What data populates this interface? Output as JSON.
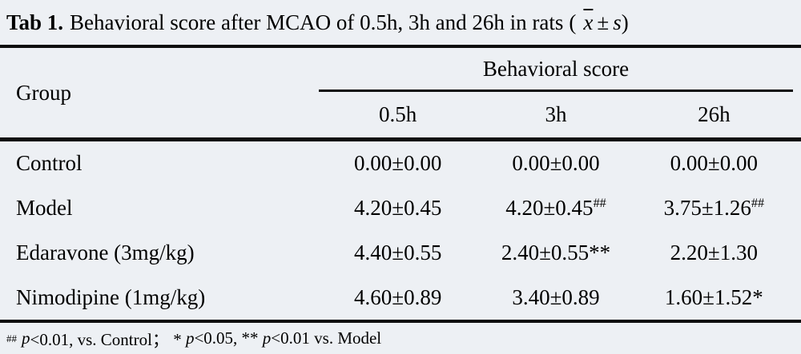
{
  "title": {
    "label": "Tab 1.",
    "text": "Behavioral score after MCAO of 0.5h, 3h and 26h in rats",
    "open_paren": "(",
    "mean_symbol": "x",
    "plus_minus": "±",
    "sd_symbol": "s",
    "close_paren": ")"
  },
  "table": {
    "group_header": "Group",
    "span_header": "Behavioral score",
    "time_headers": [
      "0.5h",
      "3h",
      "26h"
    ],
    "rows": [
      {
        "group": "Control",
        "cells": [
          {
            "v": "0.00±0.00",
            "sup": ""
          },
          {
            "v": "0.00±0.00",
            "sup": ""
          },
          {
            "v": "0.00±0.00",
            "sup": ""
          }
        ]
      },
      {
        "group": "Model",
        "cells": [
          {
            "v": "4.20±0.45",
            "sup": ""
          },
          {
            "v": "4.20±0.45",
            "sup": "##"
          },
          {
            "v": "3.75±1.26",
            "sup": "##"
          }
        ]
      },
      {
        "group": "Edaravone (3mg/kg)",
        "cells": [
          {
            "v": "4.40±0.55",
            "sup": ""
          },
          {
            "v": "2.40±0.55**",
            "sup": ""
          },
          {
            "v": "2.20±1.30",
            "sup": ""
          }
        ]
      },
      {
        "group": "Nimodipine (1mg/kg)",
        "cells": [
          {
            "v": "4.60±0.89",
            "sup": ""
          },
          {
            "v": "3.40±0.89",
            "sup": ""
          },
          {
            "v": "1.60±1.52*",
            "sup": ""
          }
        ]
      }
    ]
  },
  "footnote": {
    "marker": "##",
    "seg_p1": "p",
    "seg_t1": "<0.01, vs. Control； * ",
    "seg_p2": "p",
    "seg_t2": "<0.05, ** ",
    "seg_p3": "p",
    "seg_t3": "<0.01 vs. Model"
  },
  "colors": {
    "background": "#edf0f4",
    "rule": "#0d0d0d",
    "text": "#000000"
  }
}
